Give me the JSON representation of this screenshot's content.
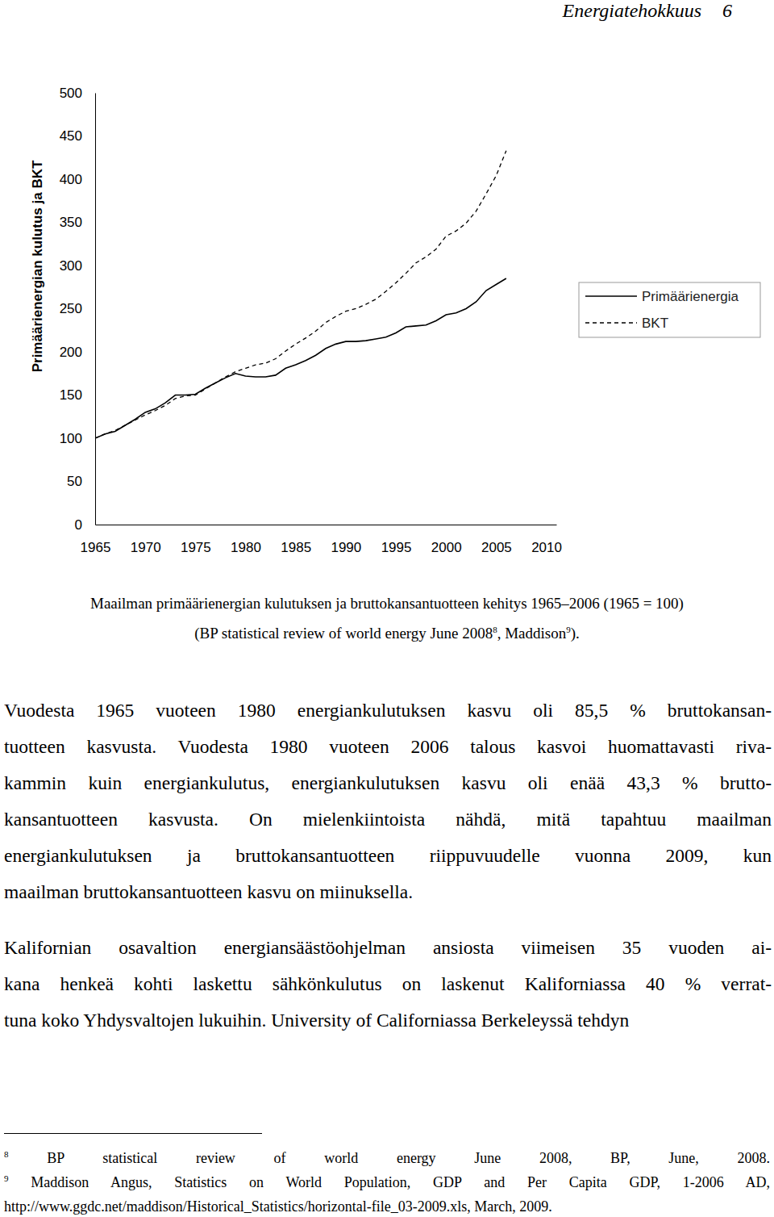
{
  "header": {
    "title": "Energiatehokkuus",
    "page": 6
  },
  "chart_data": {
    "type": "line",
    "y_label": "Primäärienergian kulutus ja BKT",
    "x": [
      1965,
      1966,
      1967,
      1968,
      1969,
      1970,
      1971,
      1972,
      1973,
      1974,
      1975,
      1976,
      1977,
      1978,
      1979,
      1980,
      1981,
      1982,
      1983,
      1984,
      1985,
      1986,
      1987,
      1988,
      1989,
      1990,
      1991,
      1992,
      1993,
      1994,
      1995,
      1996,
      1997,
      1998,
      1999,
      2000,
      2001,
      2002,
      2003,
      2004,
      2005,
      2006
    ],
    "series": [
      {
        "name": "Primäärienergia",
        "color": "#000000",
        "line_style": "solid",
        "values": [
          100,
          105,
          108,
          115,
          122,
          130,
          134,
          141,
          150,
          150,
          151,
          158,
          164,
          170,
          175,
          172,
          171,
          171,
          173,
          181,
          185,
          190,
          196,
          204,
          209,
          212,
          212,
          213,
          215,
          217,
          222,
          229,
          230,
          231,
          236,
          243,
          245,
          250,
          258,
          271,
          278,
          285
        ]
      },
      {
        "name": "BKT",
        "color": "#000000",
        "line_style": "dashed",
        "values": [
          100,
          105,
          109,
          115,
          121,
          127,
          132,
          138,
          146,
          149,
          150,
          157,
          164,
          171,
          177,
          181,
          185,
          187,
          192,
          201,
          209,
          216,
          224,
          234,
          241,
          247,
          250,
          255,
          261,
          270,
          280,
          291,
          303,
          310,
          319,
          334,
          340,
          349,
          363,
          383,
          404,
          433
        ]
      }
    ],
    "xlim": [
      1965,
      2011
    ],
    "xticks": [
      1965,
      1970,
      1975,
      1980,
      1985,
      1990,
      1995,
      2000,
      2005,
      2010
    ],
    "ylim": [
      0,
      500
    ],
    "yticks": [
      0,
      50,
      100,
      150,
      200,
      250,
      300,
      350,
      400,
      450,
      500
    ],
    "grid": false,
    "legend": "right"
  },
  "caption": {
    "line1": "Maailman primäärienergian kulutuksen ja bruttokansantuotteen kehitys 1965–2006 (1965 = 100)",
    "line2": [
      {
        "text": "(BP statistical review of world energy June 2008"
      },
      {
        "sup": "8"
      },
      {
        "text": ", Maddison"
      },
      {
        "sup": "9"
      },
      {
        "text": ")."
      }
    ]
  },
  "paragraphs": [
    [
      "Vuodesta 1965 vuoteen 1980 energiankulutuksen kasvu oli 85,5 % bruttokansan-",
      "tuotteen kasvusta. Vuodesta 1980 vuoteen 2006 talous kasvoi huomattavasti riva-",
      "kammin kuin energiankulutus, energiankulutuksen kasvu oli enää 43,3 % brutto-",
      "kansantuotteen kasvusta. On mielenkiintoista nähdä, mitä tapahtuu maailman",
      "energiankulutuksen ja bruttokansantuotteen riippuvuudelle vuonna 2009, kun",
      "maailman bruttokansantuotteen kasvu on miinuksella."
    ],
    [
      "Kalifornian osavaltion energiansäästöohjelman ansiosta viimeisen 35 vuoden ai-",
      "kana henkeä kohti laskettu sähkönkulutus on laskenut Kaliforniassa 40 % verrat-",
      "tuna koko Yhdysvaltojen lukuihin. University of Californiassa Berkeleyssä tehdyn"
    ]
  ],
  "footnotes": [
    {
      "number": "8",
      "lines": [
        "BP statistical review of world energy June 2008, BP, June, 2008."
      ]
    },
    {
      "number": "9",
      "lines": [
        "Maddison Angus, Statistics on World Population, GDP and Per Capita GDP, 1-2006 AD,",
        "http://www.ggdc.net/maddison/Historical_Statistics/horizontal-file_03-2009.xls, March, 2009."
      ]
    }
  ]
}
